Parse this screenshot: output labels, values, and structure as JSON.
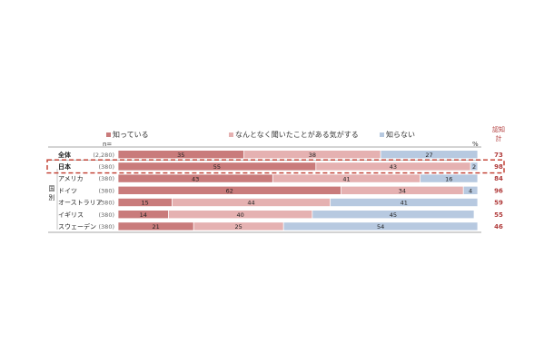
{
  "chart_data": {
    "type": "bar",
    "orientation": "horizontal",
    "stacked": true,
    "percent": true,
    "legend": [
      "知っている",
      "なんとなく聞いたことがある気がする",
      "知らない"
    ],
    "colors": [
      "#c97b7b",
      "#e5b1b1",
      "#b7c9e0"
    ],
    "n_label": "n=",
    "unit_label": "%",
    "total_header": [
      "認知",
      "計"
    ],
    "group_label": [
      "国",
      "別"
    ],
    "rows": [
      {
        "label": "全体",
        "n": "(2,280)",
        "values": [
          35,
          38,
          27
        ],
        "total": 73
      },
      {
        "label": "日本",
        "n": "(380)",
        "values": [
          55,
          43,
          2
        ],
        "total": 98
      },
      {
        "label": "アメリカ",
        "n": "(380)",
        "values": [
          43,
          41,
          16
        ],
        "total": 84
      },
      {
        "label": "ドイツ",
        "n": "(380)",
        "values": [
          62,
          34,
          4
        ],
        "total": 96
      },
      {
        "label": "オーストラリア",
        "n": "(380)",
        "values": [
          15,
          44,
          41
        ],
        "total": 59
      },
      {
        "label": "イギリス",
        "n": "(380)",
        "values": [
          14,
          40,
          45
        ],
        "total": 55
      },
      {
        "label": "スウェーデン",
        "n": "(380)",
        "values": [
          21,
          25,
          54
        ],
        "total": 46
      }
    ],
    "highlight_row": "日本",
    "grid": false,
    "legend_position": "top"
  }
}
